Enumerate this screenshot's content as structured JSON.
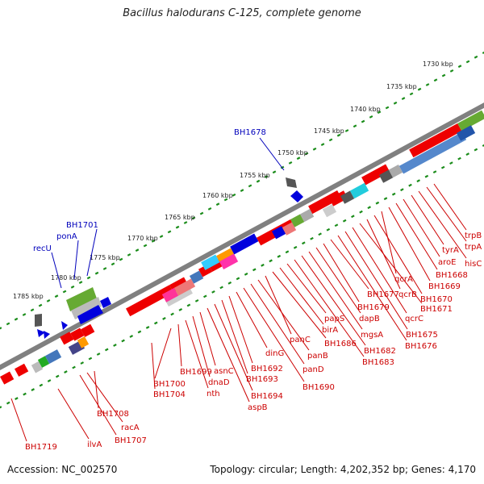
{
  "title": "Bacillus halodurans C-125, complete genome",
  "accession": "Accession: NC_002570",
  "topology": "Topology: circular; Length: 4,202,352 bp; Genes: 4,170",
  "colors": {
    "backbone": "#808080",
    "tick_dots": "#1a8c1a",
    "forward_label": "#0000bb",
    "reverse_label": "#cc0000",
    "forward_gene": "#0000dd",
    "reverse_gene": "#ee0000"
  },
  "scale_ticks": [
    "1730 kbp",
    "1735 kbp",
    "1740 kbp",
    "1745 kbp",
    "1750 kbp",
    "1755 kbp",
    "1760 kbp",
    "1765 kbp",
    "1770 kbp",
    "1775 kbp",
    "1780 kbp",
    "1785 kbp"
  ],
  "forward_genes": [
    "BH1678",
    "BH1701",
    "ponA",
    "recU"
  ],
  "reverse_genes": [
    "trpB",
    "trpA",
    "hisC",
    "tyrA",
    "aroE",
    "BH1668",
    "BH1669",
    "qcrA",
    "BH1670",
    "qcrB",
    "BH1671",
    "qcrC",
    "BH1675",
    "BH1676",
    "BH1677",
    "BH1679",
    "dapB",
    "mgsA",
    "BH1682",
    "BH1683",
    "papS",
    "birA",
    "BH1686",
    "panC",
    "panB",
    "panD",
    "BH1690",
    "dinG",
    "BH1692",
    "BH1693",
    "BH1694",
    "aspB",
    "asnC",
    "dnaD",
    "nth",
    "BH1699",
    "BH1700",
    "BH1704",
    "BH1708",
    "racA",
    "BH1707",
    "ilvA",
    "BH1719"
  ]
}
